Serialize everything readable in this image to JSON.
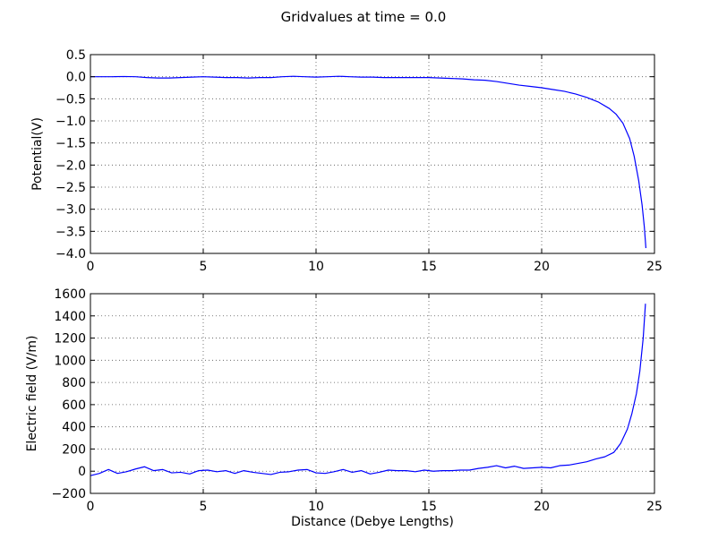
{
  "figure": {
    "suptitle": "Gridvalues at time = 0.0",
    "line_color": "#0000ff",
    "grid_color": "#555555"
  },
  "chart_data": [
    {
      "type": "line",
      "title": "",
      "xlabel": "",
      "ylabel": "Potential(V)",
      "xlim": [
        0,
        25
      ],
      "ylim": [
        -4.0,
        0.5
      ],
      "grid": true,
      "xticks": [
        0,
        5,
        10,
        15,
        20,
        25
      ],
      "xtick_labels": [
        "0",
        "5",
        "10",
        "15",
        "20",
        "25"
      ],
      "yticks": [
        0.5,
        0.0,
        -0.5,
        -1.0,
        -1.5,
        -2.0,
        -2.5,
        -3.0,
        -3.5,
        -4.0
      ],
      "ytick_labels": [
        "0.5",
        "0.0",
        "−0.5",
        "−1.0",
        "−1.5",
        "−2.0",
        "−2.5",
        "−3.0",
        "−3.5",
        "−4.0"
      ],
      "series": [
        {
          "x": [
            0,
            0.5,
            1,
            1.5,
            2,
            2.5,
            3,
            3.5,
            4,
            4.5,
            5,
            5.5,
            6,
            6.5,
            7,
            7.5,
            8,
            8.5,
            9,
            9.5,
            10,
            10.5,
            11,
            11.5,
            12,
            12.5,
            13,
            13.5,
            14,
            14.5,
            15,
            15.5,
            16,
            16.5,
            17,
            17.5,
            18,
            18.5,
            19,
            19.5,
            20,
            20.5,
            21,
            21.5,
            22,
            22.5,
            23,
            23.3,
            23.6,
            23.9,
            24.1,
            24.3,
            24.45,
            24.55,
            24.62
          ],
          "y": [
            0.0,
            0.0,
            0.0,
            0.005,
            0.0,
            -0.02,
            -0.03,
            -0.03,
            -0.02,
            -0.01,
            0.0,
            -0.01,
            -0.02,
            -0.02,
            -0.03,
            -0.02,
            -0.02,
            0.0,
            0.01,
            0.0,
            -0.01,
            0.0,
            0.01,
            0.0,
            -0.01,
            -0.01,
            -0.02,
            -0.02,
            -0.02,
            -0.02,
            -0.02,
            -0.03,
            -0.04,
            -0.05,
            -0.07,
            -0.08,
            -0.11,
            -0.15,
            -0.19,
            -0.22,
            -0.25,
            -0.29,
            -0.33,
            -0.39,
            -0.47,
            -0.57,
            -0.72,
            -0.85,
            -1.05,
            -1.4,
            -1.8,
            -2.35,
            -2.9,
            -3.4,
            -3.88
          ]
        }
      ]
    },
    {
      "type": "line",
      "title": "",
      "xlabel": "Distance (Debye Lengths)",
      "ylabel": "Electric field (V/m)",
      "xlim": [
        0,
        25
      ],
      "ylim": [
        -200,
        1600
      ],
      "grid": true,
      "xticks": [
        0,
        5,
        10,
        15,
        20,
        25
      ],
      "xtick_labels": [
        "0",
        "5",
        "10",
        "15",
        "20",
        "25"
      ],
      "yticks": [
        1600,
        1400,
        1200,
        1000,
        800,
        600,
        400,
        200,
        0,
        -200
      ],
      "ytick_labels": [
        "1600",
        "1400",
        "1200",
        "1000",
        "800",
        "600",
        "400",
        "200",
        "0",
        "−200"
      ],
      "series": [
        {
          "x": [
            0,
            0.4,
            0.8,
            1.2,
            1.6,
            2.0,
            2.4,
            2.8,
            3.2,
            3.6,
            4.0,
            4.4,
            4.8,
            5.2,
            5.6,
            6.0,
            6.4,
            6.8,
            7.2,
            7.6,
            8.0,
            8.4,
            8.8,
            9.2,
            9.6,
            10.0,
            10.4,
            10.8,
            11.2,
            11.6,
            12.0,
            12.4,
            12.8,
            13.2,
            13.6,
            14.0,
            14.4,
            14.8,
            15.2,
            15.6,
            16.0,
            16.4,
            16.8,
            17.2,
            17.6,
            18.0,
            18.4,
            18.8,
            19.2,
            19.6,
            20.0,
            20.4,
            20.8,
            21.2,
            21.6,
            22.0,
            22.4,
            22.8,
            23.2,
            23.5,
            23.8,
            24.0,
            24.2,
            24.35,
            24.5,
            24.6
          ],
          "y": [
            -40,
            -20,
            15,
            -20,
            -5,
            20,
            40,
            5,
            15,
            -15,
            -10,
            -25,
            5,
            10,
            -5,
            5,
            -20,
            5,
            -10,
            -20,
            -30,
            -10,
            -5,
            10,
            15,
            -15,
            -20,
            -5,
            15,
            -10,
            5,
            -25,
            -10,
            10,
            5,
            5,
            -5,
            10,
            0,
            5,
            5,
            10,
            10,
            25,
            35,
            50,
            30,
            45,
            25,
            30,
            35,
            30,
            50,
            55,
            70,
            85,
            110,
            130,
            170,
            250,
            380,
            520,
            700,
            900,
            1200,
            1510
          ]
        }
      ]
    }
  ]
}
